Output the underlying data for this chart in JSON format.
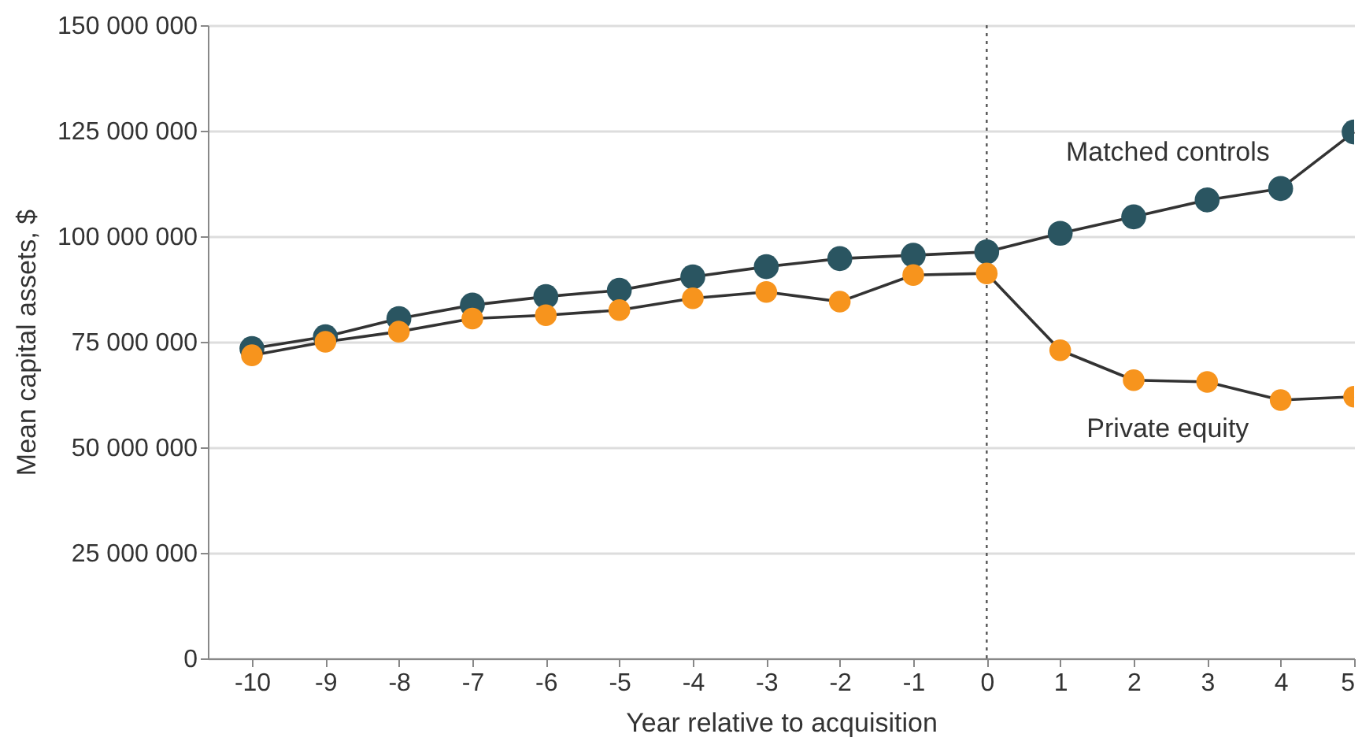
{
  "chart_data": {
    "type": "line",
    "xlabel": "Year relative to acquisition",
    "ylabel": "Mean capital assets, $",
    "x": [
      -10,
      -9,
      -8,
      -7,
      -6,
      -5,
      -4,
      -3,
      -2,
      -1,
      0,
      1,
      2,
      3,
      4,
      5
    ],
    "series": [
      {
        "name": "Matched controls",
        "color": "#2a5561",
        "values": [
          73400000,
          76200000,
          80500000,
          83700000,
          85700000,
          87200000,
          90400000,
          92800000,
          94700000,
          95500000,
          96300000,
          100700000,
          104600000,
          108600000,
          111300000,
          124700000
        ]
      },
      {
        "name": "Private equity",
        "color": "#f7941d",
        "values": [
          71800000,
          75000000,
          77400000,
          80500000,
          81300000,
          82500000,
          85300000,
          86800000,
          84500000,
          90800000,
          91200000,
          73000000,
          65900000,
          65500000,
          61200000,
          62000000
        ]
      }
    ],
    "xlim": [
      -10.6,
      5
    ],
    "xticks": [
      -10,
      -9,
      -8,
      -7,
      -6,
      -5,
      -4,
      -3,
      -2,
      -1,
      0,
      1,
      2,
      3,
      4,
      5
    ],
    "ylim": [
      0,
      150000000
    ],
    "yticks": [
      0,
      {
        "value": 25000000,
        "label": "25 000 000"
      },
      {
        "value": 50000000,
        "label": "50 000 000"
      },
      {
        "value": 75000000,
        "label": "75 000 000"
      },
      {
        "value": 100000000,
        "label": "100 000 000"
      },
      {
        "value": 125000000,
        "label": "125 000 000"
      },
      {
        "value": 150000000,
        "label": "150 000 000"
      }
    ],
    "ref_lines": [
      {
        "axis": "x",
        "value": 0,
        "line_style": "dotted",
        "color": "#555555"
      }
    ],
    "grid": "y",
    "marker": "circle",
    "line_style": "solid",
    "legend": false
  }
}
